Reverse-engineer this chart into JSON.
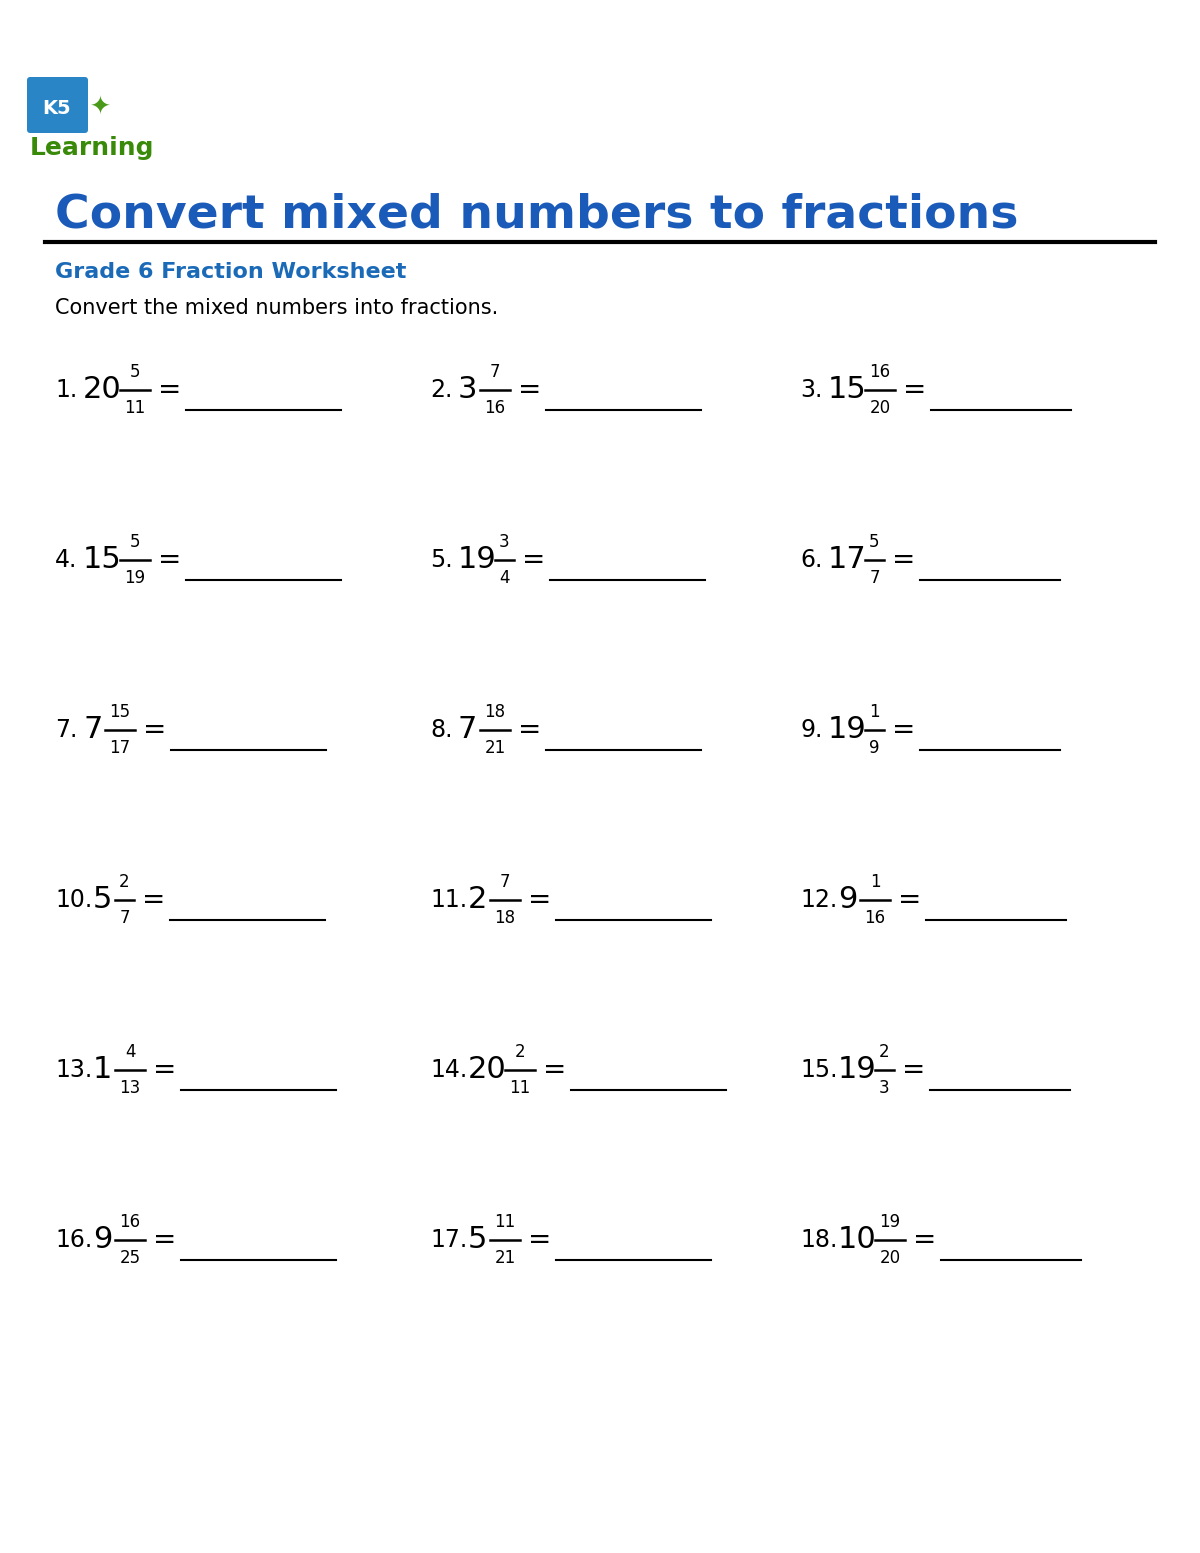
{
  "title": "Convert mixed numbers to fractions",
  "subtitle": "Grade 6 Fraction Worksheet",
  "instruction": "Convert the mixed numbers into fractions.",
  "title_color": "#1a5ab8",
  "subtitle_color": "#1a6ab8",
  "instruction_color": "#000000",
  "bg_color": "#ffffff",
  "line_color": "#000000",
  "problems": [
    {
      "num": "1",
      "whole": "20",
      "numer": "5",
      "denom": "11"
    },
    {
      "num": "2",
      "whole": "3",
      "numer": "7",
      "denom": "16"
    },
    {
      "num": "3",
      "whole": "15",
      "numer": "16",
      "denom": "20"
    },
    {
      "num": "4",
      "whole": "15",
      "numer": "5",
      "denom": "19"
    },
    {
      "num": "5",
      "whole": "19",
      "numer": "3",
      "denom": "4"
    },
    {
      "num": "6",
      "whole": "17",
      "numer": "5",
      "denom": "7"
    },
    {
      "num": "7",
      "whole": "7",
      "numer": "15",
      "denom": "17"
    },
    {
      "num": "8",
      "whole": "7",
      "numer": "18",
      "denom": "21"
    },
    {
      "num": "9",
      "whole": "19",
      "numer": "1",
      "denom": "9"
    },
    {
      "num": "10",
      "whole": "5",
      "numer": "2",
      "denom": "7"
    },
    {
      "num": "11",
      "whole": "2",
      "numer": "7",
      "denom": "18"
    },
    {
      "num": "12",
      "whole": "9",
      "numer": "1",
      "denom": "16"
    },
    {
      "num": "13",
      "whole": "1",
      "numer": "4",
      "denom": "13"
    },
    {
      "num": "14",
      "whole": "20",
      "numer": "2",
      "denom": "11"
    },
    {
      "num": "15",
      "whole": "19",
      "numer": "2",
      "denom": "3"
    },
    {
      "num": "16",
      "whole": "9",
      "numer": "16",
      "denom": "25"
    },
    {
      "num": "17",
      "whole": "5",
      "numer": "11",
      "denom": "21"
    },
    {
      "num": "18",
      "whole": "10",
      "numer": "19",
      "denom": "20"
    }
  ],
  "figsize": [
    12.0,
    15.53
  ],
  "dpi": 100
}
